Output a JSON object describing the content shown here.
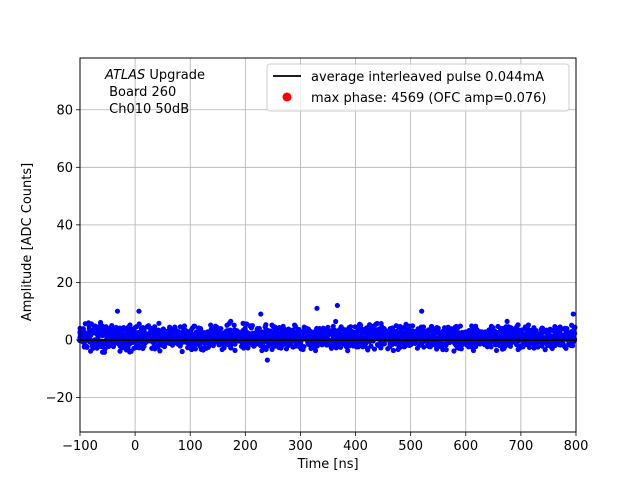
{
  "chart_data": {
    "type": "scatter",
    "title": "",
    "xlabel": "Time [ns]",
    "ylabel": "Amplitude [ADC Counts]",
    "xlim": [
      -100,
      800
    ],
    "ylim": [
      -32,
      98
    ],
    "x_ticks": [
      -100,
      0,
      100,
      200,
      300,
      400,
      500,
      600,
      700,
      800
    ],
    "x_tick_labels": [
      "−100",
      "0",
      "100",
      "200",
      "300",
      "400",
      "500",
      "600",
      "700",
      "800"
    ],
    "y_ticks": [
      -20,
      0,
      20,
      40,
      60,
      80
    ],
    "y_tick_labels": [
      "−20",
      "0",
      "20",
      "40",
      "60",
      "80"
    ],
    "grid": true,
    "legend_position": "top-right",
    "annotation": {
      "line1_italic": "ATLAS",
      "line1_rest": " Upgrade",
      "line2": " Board 260",
      "line3": " Ch010 50dB"
    },
    "series": [
      {
        "name": "average interleaved pulse 0.044mA",
        "kind": "line",
        "color": "#000000",
        "x": [
          -100,
          0,
          100,
          200,
          300,
          400,
          500,
          600,
          700,
          800
        ],
        "y": [
          0,
          0,
          0,
          0,
          0,
          0,
          0,
          0,
          0,
          0
        ]
      },
      {
        "name": "max phase: 4569 (OFC amp=0.076)",
        "kind": "marker",
        "color": "#ff0000",
        "x": [],
        "y": []
      },
      {
        "name": "",
        "kind": "scatter",
        "color": "#0000ff",
        "x_range": [
          -100,
          800
        ],
        "y_band": [
          -5,
          7
        ],
        "outliers": [
          {
            "x": -32,
            "y": 10
          },
          {
            "x": 7,
            "y": 10
          },
          {
            "x": 228,
            "y": 9
          },
          {
            "x": 330,
            "y": 11
          },
          {
            "x": 367,
            "y": 12
          },
          {
            "x": 520,
            "y": 10
          },
          {
            "x": 240,
            "y": -7
          },
          {
            "x": 795,
            "y": 9
          }
        ]
      }
    ]
  }
}
